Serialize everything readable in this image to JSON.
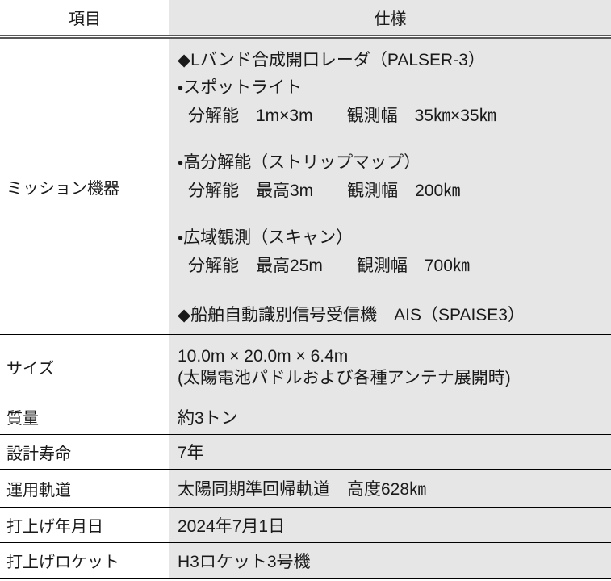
{
  "table": {
    "header": {
      "item": "項目",
      "spec": "仕様"
    },
    "mission": {
      "label": "ミッション機器",
      "lines": [
        "◆Lバンド合成開口レーダ（PALSER-3）",
        "・スポットライト",
        "分解能　1m×3m　　観測幅　35㎞×35㎞",
        "・高分解能（ストリップマップ）",
        "分解能　最高3m　　観測幅　200㎞",
        "・広域観測（スキャン）",
        "分解能　最高25m　　観測幅　700㎞",
        "◆船舶自動識別信号受信機　AIS（SPAISE3）"
      ]
    },
    "rows": [
      {
        "label": "サイズ",
        "value": "10.0m × 20.0m × 6.4m",
        "note": "(太陽電池パドルおよび各種アンテナ展開時)"
      },
      {
        "label": "質量",
        "value": "約3トン"
      },
      {
        "label": "設計寿命",
        "value": "7年"
      },
      {
        "label": "運用軌道",
        "value": "太陽同期準回帰軌道　高度628㎞"
      },
      {
        "label": "打上げ年月日",
        "value": "2024年7月1日"
      },
      {
        "label": "打上げロケット",
        "value": "H3ロケット3号機"
      }
    ]
  },
  "colors": {
    "spec_column_bg": "#e7e6e6",
    "text": "#1a1a1a",
    "row_border": "#000000",
    "header_rule": "#595959"
  }
}
